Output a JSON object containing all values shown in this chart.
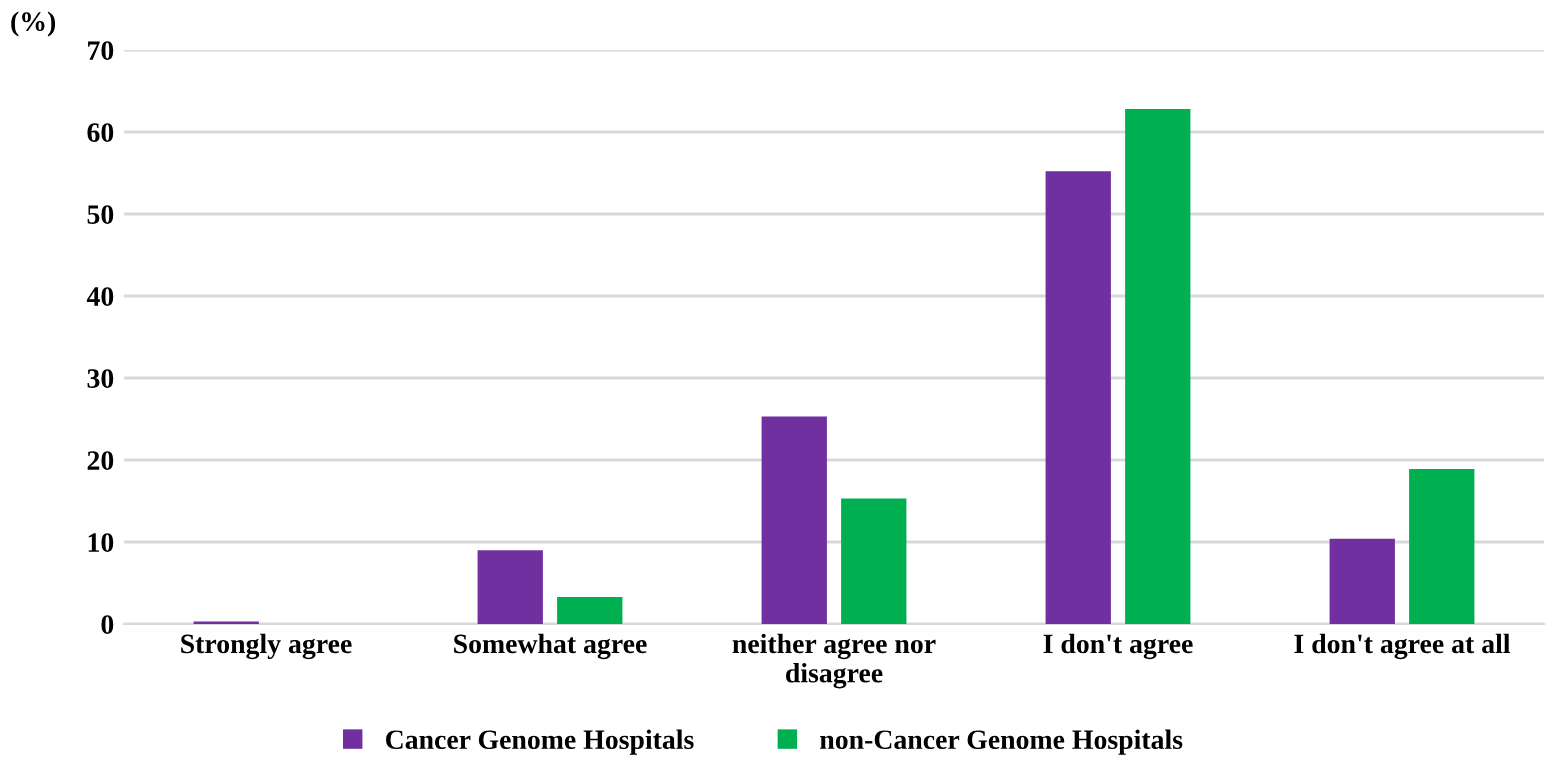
{
  "chart_data": {
    "type": "bar",
    "ylabel": "(%)",
    "categories": [
      "Strongly agree",
      "Somewhat agree",
      "neither agree nor\ndisagree",
      "I don't agree",
      "I don't agree at all"
    ],
    "series": [
      {
        "name": "Cancer Genome Hospitals",
        "color": "#7030a0",
        "values": [
          0.3,
          9.0,
          25.3,
          55.2,
          10.4
        ]
      },
      {
        "name": "non-Cancer Genome Hospitals",
        "color": "#00b050",
        "values": [
          0,
          3.3,
          15.3,
          62.8,
          18.9
        ]
      }
    ],
    "ylim": [
      0,
      70
    ],
    "yticks": [
      0,
      10,
      20,
      30,
      40,
      50,
      60,
      70
    ],
    "grid": "y",
    "legend": "bottom"
  }
}
